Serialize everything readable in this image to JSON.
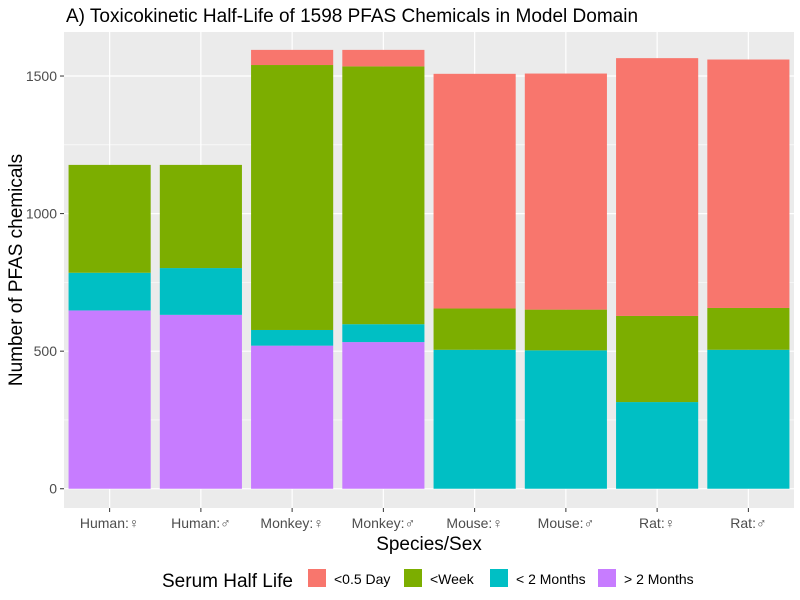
{
  "chart_data": {
    "type": "bar",
    "stacked": true,
    "title": "A) Toxicokinetic Half-Life of 1598 PFAS Chemicals in Model Domain",
    "xlabel": "Species/Sex",
    "ylabel": "Number of PFAS chemicals",
    "ylim": [
      -70,
      1660
    ],
    "yticks": [
      0,
      500,
      1000,
      1500
    ],
    "grid": true,
    "legend": {
      "title": "Serum Half Life",
      "position": "bottom"
    },
    "categories": [
      "Human:♀",
      "Human:♂",
      "Monkey:♀",
      "Monkey:♂",
      "Mouse:♀",
      "Mouse:♂",
      "Rat:♀",
      "Rat:♂"
    ],
    "series": [
      {
        "name": "<0.5 Day",
        "color": "#F8766D",
        "values": [
          0,
          0,
          55,
          60,
          853,
          858,
          937,
          903
        ]
      },
      {
        "name": "<Week",
        "color": "#7CAE00",
        "values": [
          392,
          375,
          963,
          937,
          150,
          148,
          313,
          152
        ]
      },
      {
        "name": "< 2 Months",
        "color": "#00BFC4",
        "values": [
          137,
          170,
          57,
          65,
          505,
          503,
          315,
          505
        ]
      },
      {
        "name": "> 2 Months",
        "color": "#C77CFF",
        "values": [
          648,
          632,
          520,
          533,
          0,
          0,
          0,
          0
        ]
      }
    ]
  }
}
